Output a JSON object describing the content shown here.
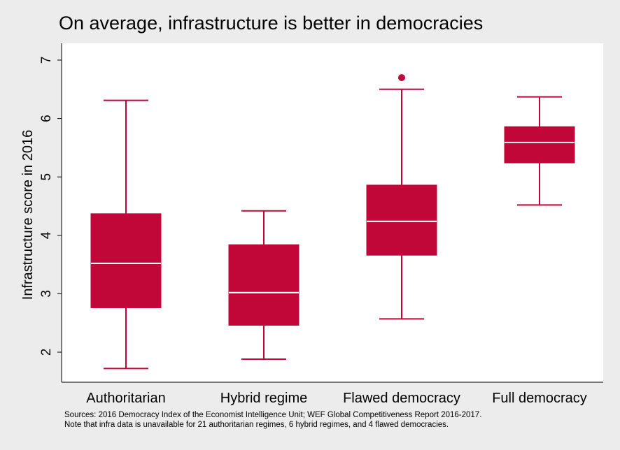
{
  "chart_data": {
    "type": "box",
    "title": "On average, infrastructure is better in democracies",
    "xlabel": "",
    "ylabel": "Infrastructure score in 2016",
    "ylim": [
      1.5,
      7.2
    ],
    "yticks": [
      2,
      3,
      4,
      5,
      6,
      7
    ],
    "categories": [
      "Authoritarian",
      "Hybrid regime",
      "Flawed democracy",
      "Full democracy"
    ],
    "boxes": [
      {
        "whisker_low": 1.72,
        "q1": 2.76,
        "median": 3.52,
        "q3": 4.37,
        "whisker_high": 6.31,
        "outliers": []
      },
      {
        "whisker_low": 1.88,
        "q1": 2.46,
        "median": 3.02,
        "q3": 3.84,
        "whisker_high": 4.42,
        "outliers": []
      },
      {
        "whisker_low": 2.57,
        "q1": 3.66,
        "median": 4.24,
        "q3": 4.86,
        "whisker_high": 6.5,
        "outliers": [
          6.7
        ]
      },
      {
        "whisker_low": 4.52,
        "q1": 5.24,
        "median": 5.59,
        "q3": 5.86,
        "whisker_high": 6.37,
        "outliers": []
      }
    ],
    "colors": {
      "box": "#c00737",
      "median": "#ffffff",
      "plot_bg": "#ffffff",
      "page_bg": "#ececec"
    },
    "grid": false,
    "legend": "none"
  },
  "notes": {
    "line1": "Sources: 2016 Democracy Index of the Economist Intelligence Unit; WEF Global Competitiveness Report 2016-2017.",
    "line2": "Note that infra data is unavailable for 21 authoritarian regimes, 6 hybrid regimes, and 4 flawed democracies."
  }
}
